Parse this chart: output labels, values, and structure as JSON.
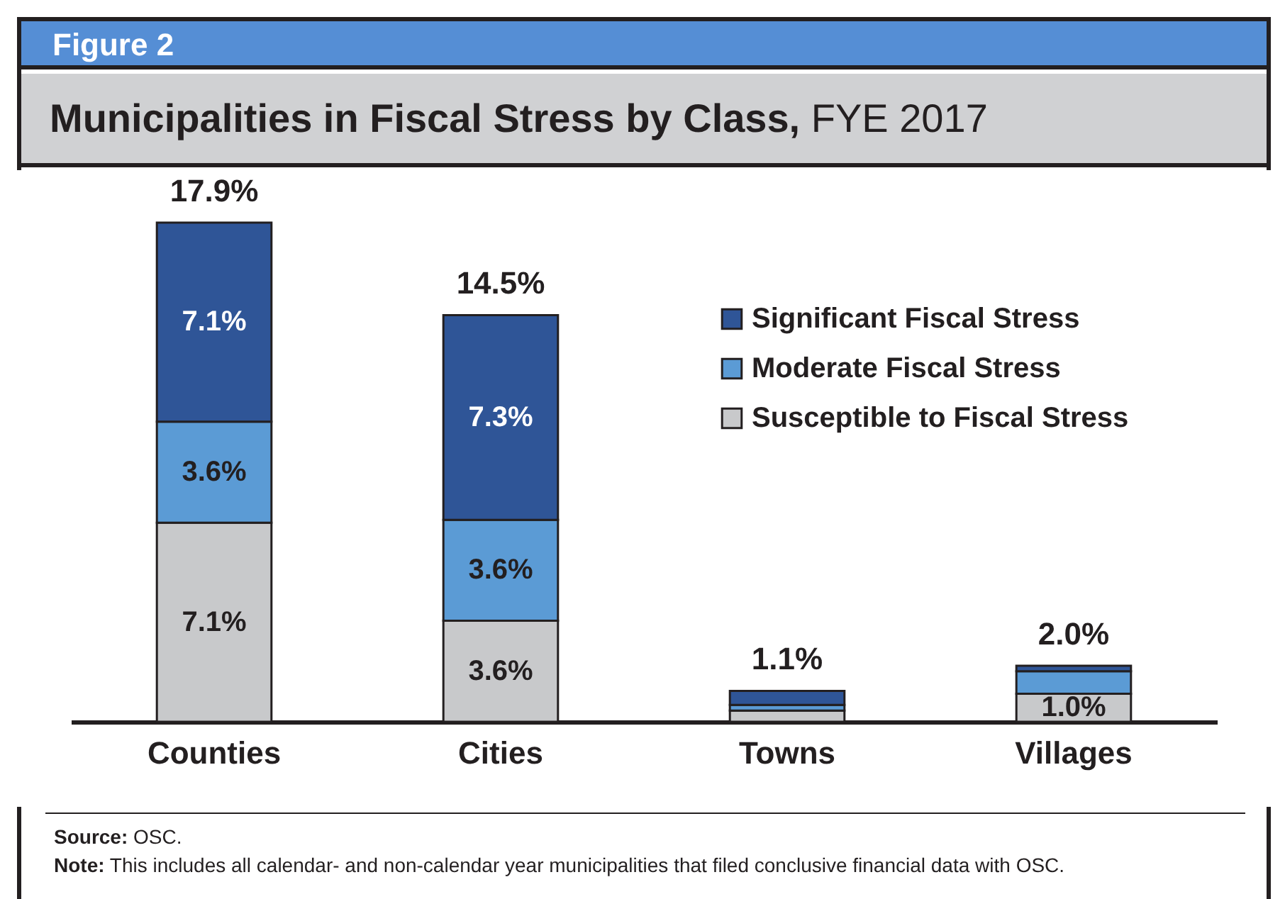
{
  "chart_data": {
    "type": "bar",
    "stacked": true,
    "title": "Municipalities in Fiscal Stress by Class, FYE 2017",
    "annotations": [
      "Figure 2",
      "Source: OSC.",
      "Note: This includes all calendar- and non-calendar year municipalities that filed conclusive financial data with OSC."
    ],
    "categories": [
      "Counties",
      "Cities",
      "Towns",
      "Villages"
    ],
    "series": [
      {
        "name": "Susceptible to Fiscal Stress",
        "color": "#c8c9cb",
        "values": [
          7.1,
          3.6,
          0.4,
          1.0
        ],
        "value_labels": [
          "7.1%",
          "3.6%",
          null,
          "1.0%"
        ]
      },
      {
        "name": "Moderate Fiscal Stress",
        "color": "#5b9bd5",
        "values": [
          3.6,
          3.6,
          0.2,
          0.8
        ],
        "value_labels": [
          "3.6%",
          "3.6%",
          null,
          null
        ]
      },
      {
        "name": "Significant Fiscal Stress",
        "color": "#2f5597",
        "values": [
          7.1,
          7.3,
          0.5,
          0.2
        ],
        "value_labels": [
          "7.1%",
          "7.3%",
          null,
          null
        ]
      }
    ],
    "totals": [
      "17.9%",
      "14.5%",
      "1.1%",
      "2.0%"
    ],
    "legend": "top right",
    "grid": false
  }
}
